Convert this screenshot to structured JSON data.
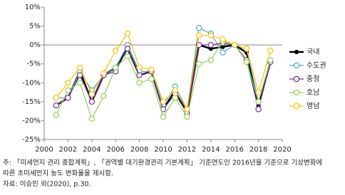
{
  "chart_data": {
    "type": "line",
    "x": [
      2001,
      2002,
      2003,
      2004,
      2005,
      2006,
      2007,
      2008,
      2009,
      2010,
      2011,
      2012,
      2013,
      2014,
      2015,
      2016,
      2017,
      2018,
      2019
    ],
    "series": [
      {
        "name": "국내",
        "color": "#000000",
        "values": [
          -16,
          -14,
          -7,
          -15,
          -8,
          -6,
          -1,
          -8,
          -7,
          -17,
          -12,
          -18,
          0,
          -1,
          -0.5,
          0,
          -2,
          -16,
          -4.5
        ]
      },
      {
        "name": "수도권",
        "color": "#4bacc6",
        "values": [
          -14,
          -14,
          -7,
          -12,
          -8,
          -6,
          0,
          -7,
          -7,
          -16,
          -11,
          -17,
          4.5,
          3,
          -2,
          0,
          -1,
          -15,
          -4
        ]
      },
      {
        "name": "충청",
        "color": "#7030a0",
        "values": [
          -16,
          -14,
          -8,
          -15,
          -8,
          -7,
          -1,
          -8,
          -7,
          -17,
          -13,
          -18,
          0,
          0,
          0.5,
          0,
          -4,
          -17,
          -4.5
        ]
      },
      {
        "name": "호남",
        "color": "#92d050",
        "values": [
          -18.5,
          -12,
          -10,
          -19.5,
          -13.5,
          -6,
          -3,
          -10,
          -9,
          -19,
          -14,
          -19,
          -5,
          -4,
          1,
          0,
          -4.5,
          -15,
          -4
        ]
      },
      {
        "name": "영남",
        "color": "#ffc000",
        "values": [
          -14,
          -10,
          -6,
          -13,
          -7.5,
          -1.5,
          3,
          -6,
          -6.5,
          -15,
          -12,
          -17,
          2.5,
          2.5,
          1.5,
          0,
          -1,
          -12.5,
          -1.5
        ]
      }
    ],
    "xlim": [
      2000,
      2020
    ],
    "xticks": [
      2000,
      2002,
      2004,
      2006,
      2008,
      2010,
      2012,
      2014,
      2016,
      2018,
      2020
    ],
    "ylim": [
      -25,
      10
    ],
    "yticks": [
      {
        "value": 10,
        "label": "10%"
      },
      {
        "value": 5,
        "label": "5%"
      },
      {
        "value": 0,
        "label": "0%"
      },
      {
        "value": -5,
        "label": "-5%"
      },
      {
        "value": -10,
        "label": "-10%"
      },
      {
        "value": -15,
        "label": "-15%"
      },
      {
        "value": -20,
        "label": "-20%"
      },
      {
        "value": -25,
        "label": "-25%"
      }
    ],
    "legend": "right",
    "notes": [
      "주: 「미세먼지 관리 종합계획」, 「권역별 대기환경관리 기본계획」 기준연도인 2016년을 기준으로 기상변화에",
      "따른 초미세먼지 농도 변화율을 제시함.",
      "자료: 이승민 외(2020), p.30."
    ]
  }
}
